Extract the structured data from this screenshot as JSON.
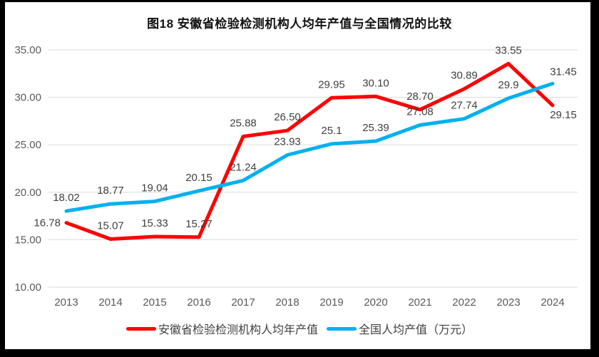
{
  "title": "图18 安徽省检验检测机构人均年产值与全国情况的比较",
  "colors": {
    "anhui_line": "#FF0000",
    "national_line": "#00B0F0",
    "grid": "#D9D9D9",
    "axis_text": "#595959",
    "data_label": "#404040",
    "frame": "#000000",
    "background": "#FFFFFF"
  },
  "chart_data": {
    "type": "line",
    "title": "图18 安徽省检验检测机构人均年产值与全国情况的比较",
    "categories": [
      "2013",
      "2014",
      "2015",
      "2016",
      "2017",
      "2018",
      "2019",
      "2020",
      "2021",
      "2022",
      "2023",
      "2024"
    ],
    "series": [
      {
        "name": "安徽省检验检测机构人均年产值",
        "color": "#FF0000",
        "values": [
          16.78,
          15.07,
          15.33,
          15.27,
          25.88,
          26.5,
          29.95,
          30.1,
          28.7,
          30.89,
          33.55,
          29.15
        ],
        "labels": [
          "16.78",
          "15.07",
          "15.33",
          "15.27",
          "25.88",
          "26.50",
          "29.95",
          "30.10",
          "28.70",
          "30.89",
          "33.55",
          "29.15"
        ]
      },
      {
        "name": "全国人均产值（万元）",
        "color": "#00B0F0",
        "values": [
          18.02,
          18.77,
          19.04,
          20.15,
          21.24,
          23.93,
          25.1,
          25.39,
          27.08,
          27.74,
          29.9,
          31.45
        ],
        "labels": [
          "18.02",
          "18.77",
          "19.04",
          "20.15",
          "21.24",
          "23.93",
          "25.1",
          "25.39",
          "27.08",
          "27.74",
          "29.9",
          "31.45"
        ]
      }
    ],
    "y_ticks": [
      "35.00",
      "30.00",
      "25.00",
      "20.00",
      "15.00",
      "10.00"
    ],
    "ylim": [
      10,
      35
    ],
    "grid": true,
    "legend_position": "bottom",
    "xlabel": "",
    "ylabel": ""
  }
}
